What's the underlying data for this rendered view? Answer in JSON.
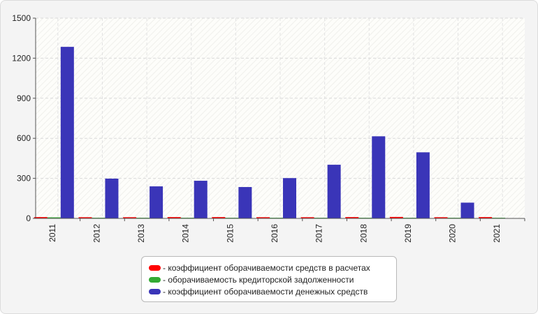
{
  "chart_data": {
    "type": "bar",
    "categories": [
      "2011",
      "2012",
      "2013",
      "2014",
      "2015",
      "2016",
      "2017",
      "2018",
      "2019",
      "2020",
      "2021"
    ],
    "series": [
      {
        "name": "- коэффициент оборачиваемости средств в расчетах",
        "color": "#ff0000",
        "values": [
          10,
          9,
          9,
          10,
          10,
          9,
          9,
          10,
          11,
          9,
          10
        ]
      },
      {
        "name": "- оборачиваемость кредиторской задолженности",
        "color": "#33aa33",
        "values": [
          8,
          5,
          5,
          5,
          5,
          5,
          5,
          5,
          5,
          5,
          5
        ]
      },
      {
        "name": "- коэффициент оборачиваемости денежных средств",
        "color": "#3a35b8",
        "values": [
          1285,
          298,
          240,
          282,
          235,
          302,
          402,
          615,
          495,
          118,
          0
        ]
      }
    ],
    "yticks": [
      0,
      300,
      600,
      900,
      1200,
      1500
    ],
    "ylim": [
      0,
      1500
    ],
    "grid": true,
    "legend_position": "bottom-center"
  }
}
